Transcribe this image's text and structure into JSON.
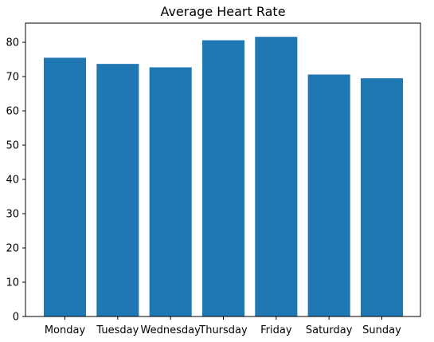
{
  "chart_data": {
    "type": "bar",
    "title": "Average Heart Rate",
    "xlabel": "",
    "ylabel": "",
    "categories": [
      "Monday",
      "Tuesday",
      "Wednesday",
      "Thursday",
      "Friday",
      "Saturday",
      "Sunday"
    ],
    "values": [
      75.5,
      73.7,
      72.7,
      80.6,
      81.6,
      70.6,
      69.5
    ],
    "ylim": [
      0,
      85.6
    ],
    "yticks": [
      0,
      10,
      20,
      30,
      40,
      50,
      60,
      70,
      80
    ],
    "grid": false,
    "bar_color": "#1f77b4"
  }
}
